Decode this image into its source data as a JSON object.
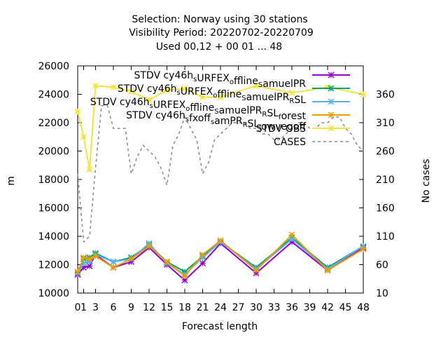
{
  "chart_data": {
    "type": "line",
    "title_lines": [
      "Selection: Norway using    30 stations",
      "Visibility   Period: 20220702-20220709",
      "Used  00,12  + 00 01 ... 48"
    ],
    "xlabel": "Forecast length",
    "ylabel": "m",
    "y2label": "No cases",
    "xlim": [
      0,
      48
    ],
    "ylim": [
      10000,
      26000
    ],
    "y2lim": [
      10,
      410
    ],
    "xticks": [
      0,
      3,
      6,
      9,
      12,
      15,
      18,
      21,
      24,
      27,
      30,
      33,
      36,
      39,
      42,
      45,
      48
    ],
    "xtick_labels": [
      "0",
      "3",
      "6",
      "9",
      "12",
      "15",
      "18",
      "21",
      "24",
      "27",
      "30",
      "33",
      "36",
      "39",
      "42",
      "45",
      "48"
    ],
    "x2ticks": [
      1
    ],
    "x2tick_labels": [
      "1"
    ],
    "yticks": [
      10000,
      12000,
      14000,
      16000,
      18000,
      20000,
      22000,
      24000,
      26000
    ],
    "ytick_labels": [
      "10000",
      "12000",
      "14000",
      "16000",
      "18000",
      "20000",
      "22000",
      "24000",
      "26000"
    ],
    "y2ticks": [
      10,
      60,
      110,
      160,
      210,
      260,
      310,
      360
    ],
    "y2tick_labels": [
      "10",
      "60",
      "110",
      "160",
      "210",
      "260",
      "310",
      "360"
    ],
    "grid": false,
    "legend_position": "top-right",
    "x": [
      0,
      1,
      2,
      3,
      6,
      9,
      12,
      15,
      18,
      21,
      24,
      30,
      36,
      42,
      48
    ],
    "series": [
      {
        "name": "STDV cy46h_S URFEX_o ffline_S amuelPR",
        "legend_parts": [
          [
            "STDV cy46h",
            ""
          ],
          [
            "s",
            "sub"
          ],
          [
            "URFEX",
            ""
          ],
          [
            "o",
            "sub"
          ],
          [
            "ffline",
            ""
          ],
          [
            "S",
            "sub"
          ],
          [
            "amuelPR",
            ""
          ]
        ],
        "color": "#9400d3",
        "marker": "x",
        "axis": "y",
        "values": [
          11300,
          11800,
          11900,
          12700,
          11800,
          12200,
          13200,
          12000,
          10900,
          12100,
          13500,
          11400,
          13600,
          11600,
          13200
        ]
      },
      {
        "name": "STDV cy46h_S URFEX_o ffline_S amuelPR_R SL",
        "legend_parts": [
          [
            "STDV cy46h",
            ""
          ],
          [
            "s",
            "sub"
          ],
          [
            "URFEX",
            ""
          ],
          [
            "o",
            "sub"
          ],
          [
            "ffline",
            ""
          ],
          [
            "S",
            "sub"
          ],
          [
            "amuelPR",
            ""
          ],
          [
            "R",
            "sub"
          ],
          [
            "SL",
            ""
          ]
        ],
        "color": "#009e73",
        "marker": "x",
        "axis": "y",
        "values": [
          11400,
          12400,
          12500,
          12800,
          12200,
          12500,
          13400,
          12200,
          11500,
          12600,
          13600,
          11800,
          13900,
          11800,
          13300
        ]
      },
      {
        "name": "STDV cy46h_S URFEX_o ffline_S amuelPR_R SL_f orest",
        "legend_parts": [
          [
            "STDV cy46h",
            ""
          ],
          [
            "s",
            "sub"
          ],
          [
            "URFEX",
            ""
          ],
          [
            "o",
            "sub"
          ],
          [
            "ffline",
            ""
          ],
          [
            "S",
            "sub"
          ],
          [
            "amuelPR",
            ""
          ],
          [
            "R",
            "sub"
          ],
          [
            "SL",
            ""
          ],
          [
            "f",
            "sub"
          ],
          [
            "orest",
            ""
          ]
        ],
        "color": "#56b4e9",
        "marker": "x",
        "axis": "y",
        "values": [
          11400,
          12100,
          12200,
          12700,
          12200,
          12400,
          13500,
          12100,
          11300,
          12500,
          13600,
          11700,
          13800,
          11700,
          13300
        ]
      },
      {
        "name": "STDV cy46h_s fxoff_s amPR_R SL_l owvegoff",
        "legend_parts": [
          [
            "STDV cy46h",
            ""
          ],
          [
            "s",
            "sub"
          ],
          [
            "fxoff",
            ""
          ],
          [
            "s",
            "sub"
          ],
          [
            "amPR",
            ""
          ],
          [
            "R",
            "sub"
          ],
          [
            "SL",
            ""
          ],
          [
            "l",
            "sub"
          ],
          [
            "owvegoff",
            ""
          ]
        ],
        "color": "#e69f00",
        "marker": "x",
        "axis": "y",
        "values": [
          11500,
          12500,
          12400,
          12600,
          11800,
          12400,
          13300,
          12200,
          11200,
          12700,
          13700,
          11600,
          14100,
          11600,
          13100
        ]
      },
      {
        "name": "STDV OBS",
        "legend_parts": [
          [
            "STDV OBS",
            ""
          ]
        ],
        "color": "#f0e442",
        "marker": "x",
        "axis": "y",
        "values": [
          22800,
          21000,
          18700,
          24600,
          24500,
          24200,
          23600,
          24300,
          24400,
          23800,
          23800,
          24600,
          24100,
          24500,
          24000
        ]
      },
      {
        "name": "CASES",
        "legend_parts": [
          [
            "CASES",
            ""
          ]
        ],
        "color": "#888888",
        "marker": "none",
        "dash": true,
        "axis": "y2",
        "x": [
          0,
          1,
          2,
          3,
          4,
          5,
          6,
          7,
          8,
          9,
          10,
          11,
          12,
          13,
          14,
          15,
          16,
          17,
          18,
          19,
          20,
          21,
          22,
          23,
          24,
          25,
          26,
          27,
          28,
          29,
          30,
          31,
          32,
          33,
          34,
          35,
          36,
          37,
          38,
          39,
          40,
          41,
          42,
          43,
          44,
          45,
          46,
          47,
          48
        ],
        "values": [
          220,
          100,
          110,
          230,
          340,
          340,
          300,
          300,
          300,
          220,
          250,
          270,
          260,
          250,
          230,
          200,
          270,
          290,
          320,
          300,
          280,
          220,
          240,
          280,
          290,
          300,
          310,
          310,
          310,
          300,
          300,
          290,
          290,
          280,
          280,
          290,
          300,
          310,
          310,
          300,
          300,
          310,
          310,
          320,
          320,
          300,
          290,
          270,
          260
        ]
      }
    ]
  }
}
